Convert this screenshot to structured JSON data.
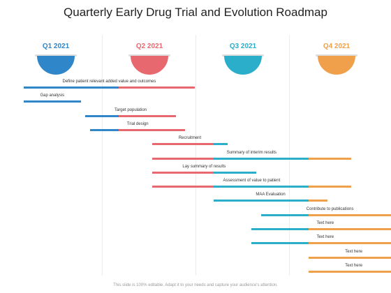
{
  "title": "Quarterly Early Drug Trial and Evolution Roadmap",
  "colors": {
    "q1": "#2f86c9",
    "q2": "#e8686f",
    "q3": "#2aaec9",
    "q4": "#f0a04b"
  },
  "quarters": [
    {
      "label": "Q1 2021",
      "color": "#2f86c9"
    },
    {
      "label": "Q2 2021",
      "color": "#e8686f"
    },
    {
      "label": "Q3 2021",
      "color": "#2aaec9"
    },
    {
      "label": "Q4 2021",
      "color": "#f0a04b"
    }
  ],
  "tasks": [
    {
      "label": "Define patient relevant added value and outcomes",
      "start_q": 0.0,
      "end_q": 1.8
    },
    {
      "label": "Gap analysis",
      "start_q": 0.0,
      "end_q": 0.6
    },
    {
      "label": "Target population",
      "start_q": 0.65,
      "end_q": 1.6
    },
    {
      "label": "Trial design",
      "start_q": 0.7,
      "end_q": 1.7
    },
    {
      "label": "Recruitment",
      "start_q": 1.35,
      "end_q": 2.15
    },
    {
      "label": "Summary of interim results",
      "start_q": 1.35,
      "end_q": 3.45
    },
    {
      "label": "Lay summary of results",
      "start_q": 1.35,
      "end_q": 2.45
    },
    {
      "label": "Assessment of value to patient",
      "start_q": 1.35,
      "end_q": 3.45
    },
    {
      "label": "MAA Evaluation",
      "start_q": 2.0,
      "end_q": 3.2
    },
    {
      "label": "Contribute to publications",
      "start_q": 2.5,
      "end_q": 3.95
    },
    {
      "label": "Text here",
      "start_q": 2.4,
      "end_q": 3.95
    },
    {
      "label": "Text here",
      "start_q": 2.4,
      "end_q": 3.95
    },
    {
      "label": "Text here",
      "start_q": 3.0,
      "end_q": 3.95
    },
    {
      "label": "Text here",
      "start_q": 3.0,
      "end_q": 3.95
    }
  ],
  "footer": "This slide is 100% editable. Adapt it to your needs and capture your audience's attention."
}
